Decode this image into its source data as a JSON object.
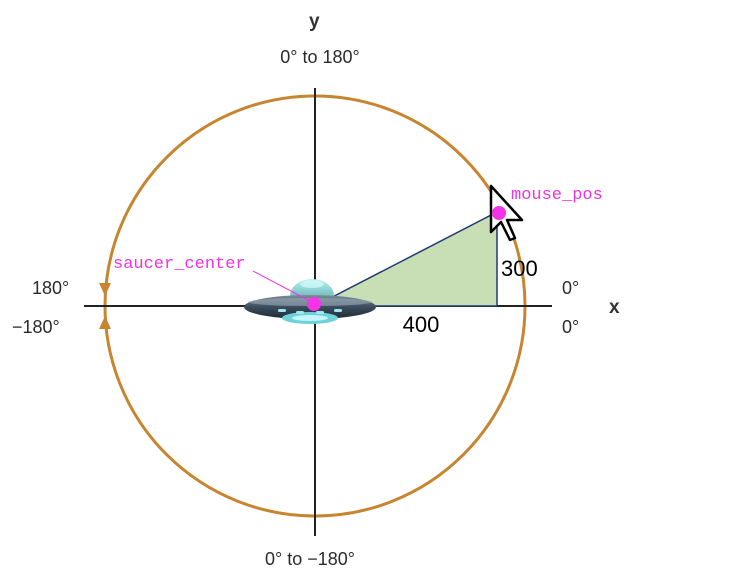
{
  "axes": {
    "x_name": "x",
    "y_name": "y"
  },
  "angle_labels": {
    "top": "0° to 180°",
    "bottom": "0° to −180°",
    "left_upper": "180°",
    "left_lower": "−180°",
    "right_upper": "0°",
    "right_lower": "0°"
  },
  "triangle": {
    "base": "400",
    "height": "300"
  },
  "points": {
    "saucer_center": "saucer_center",
    "mouse_pos": "mouse_pos"
  },
  "colors": {
    "axis_line": "#222222",
    "circle": "#c8852f",
    "triangle_fill": "#c8deb4",
    "triangle_stroke": "#1f3b73",
    "point": "#f233e6",
    "code_label": "#ee33e0",
    "saucer_body": "#3b4c5c",
    "saucer_dome": "#5fb9b8",
    "saucer_light": "#9fe8ef"
  },
  "icons": {
    "saucer": "flying-saucer-icon",
    "cursor": "arrow-cursor-icon"
  }
}
